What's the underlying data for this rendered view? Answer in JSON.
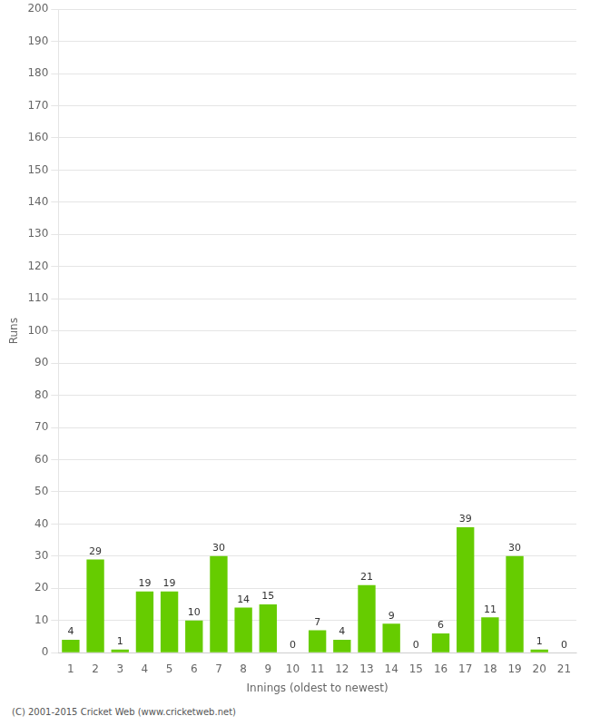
{
  "chart_data": {
    "type": "bar",
    "xlabel": "Innings (oldest to newest)",
    "ylabel": "Runs",
    "categories": [
      "1",
      "2",
      "3",
      "4",
      "5",
      "6",
      "7",
      "8",
      "9",
      "10",
      "11",
      "12",
      "13",
      "14",
      "15",
      "16",
      "17",
      "18",
      "19",
      "20",
      "21"
    ],
    "values": [
      4,
      29,
      1,
      19,
      19,
      10,
      30,
      14,
      15,
      0,
      7,
      4,
      21,
      9,
      0,
      6,
      39,
      11,
      30,
      1,
      0
    ],
    "color": "#66cc00",
    "ylim": [
      0,
      200
    ],
    "yticks": [
      0,
      10,
      20,
      30,
      40,
      50,
      60,
      70,
      80,
      90,
      100,
      110,
      120,
      130,
      140,
      150,
      160,
      170,
      180,
      190,
      200
    ],
    "grid": true,
    "data_labels": true,
    "annotations": [
      "(C) 2001-2015 Cricket Web (www.cricketweb.net)"
    ]
  }
}
